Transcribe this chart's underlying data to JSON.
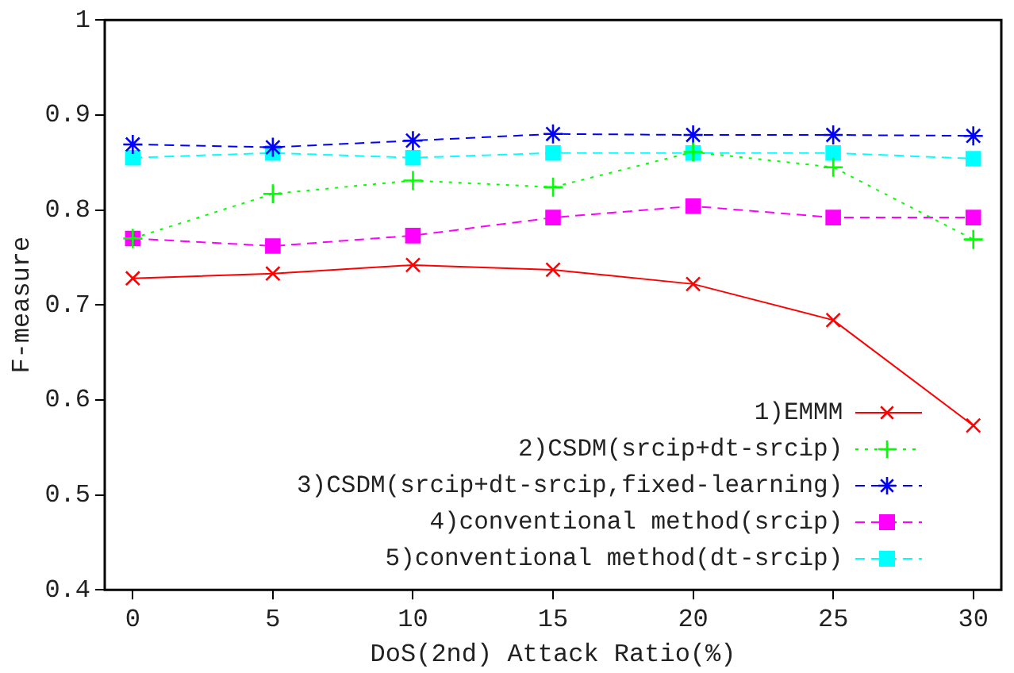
{
  "chart_data": {
    "type": "line",
    "xlabel": "DoS(2nd) Attack Ratio(%)",
    "ylabel": "F-measure",
    "x": [
      0,
      5,
      10,
      15,
      20,
      25,
      30
    ],
    "xlim": [
      -1,
      31
    ],
    "xticks": [
      0,
      5,
      10,
      15,
      20,
      25,
      30
    ],
    "ylim": [
      0.4,
      1
    ],
    "yticks": [
      0.4,
      0.5,
      0.6,
      0.7,
      0.8,
      0.9,
      1
    ],
    "grid": false,
    "legend": "bottom right",
    "series": [
      {
        "name": "1)EMMM",
        "color": "#ff0000",
        "marker": "x",
        "line_style": "solid",
        "values": [
          0.728,
          0.733,
          0.742,
          0.737,
          0.722,
          0.684,
          0.573
        ]
      },
      {
        "name": "2)CSDM(srcip+dt-srcip)",
        "color": "#00ff00",
        "marker": "plus",
        "line_style": "dotted",
        "values": [
          0.77,
          0.817,
          0.831,
          0.824,
          0.861,
          0.845,
          0.769
        ]
      },
      {
        "name": "3)CSDM(srcip+dt-srcip,fixed-learning)",
        "color": "#0000ff",
        "marker": "cross",
        "line_style": "dashed",
        "values": [
          0.869,
          0.866,
          0.873,
          0.88,
          0.879,
          0.879,
          0.878
        ]
      },
      {
        "name": "4)conventional method(srcip)",
        "color": "#ff00ff",
        "marker": "square",
        "line_style": "dashed",
        "values": [
          0.77,
          0.762,
          0.773,
          0.792,
          0.804,
          0.792,
          0.792
        ]
      },
      {
        "name": "5)conventional method(dt-srcip)",
        "color": "#00ffff",
        "marker": "square",
        "line_style": "dashed",
        "values": [
          0.855,
          0.86,
          0.855,
          0.86,
          0.86,
          0.86,
          0.854
        ]
      }
    ]
  }
}
